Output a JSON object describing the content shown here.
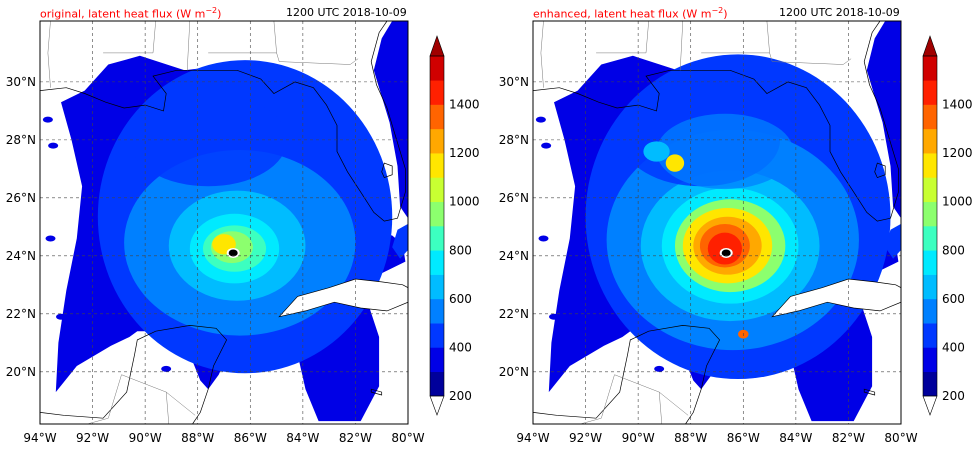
{
  "figure": {
    "time_label": "1200 UTC 2018-10-09",
    "unit_superscript": "−2"
  },
  "panels": [
    {
      "id": "original",
      "title": "original, latent heat flux (W m",
      "time": "1200 UTC 2018-10-09"
    },
    {
      "id": "enhanced",
      "title": "enhanced, latent heat flux (W m",
      "time": "1200 UTC 2018-10-09"
    }
  ],
  "map": {
    "lon_labels": [
      "94°W",
      "92°W",
      "90°W",
      "88°W",
      "86°W",
      "84°W",
      "82°W",
      "80°W"
    ],
    "lat_labels": [
      "30°N",
      "28°N",
      "26°N",
      "24°N",
      "22°N",
      "20°N"
    ],
    "lon_range": [
      -94,
      -80
    ],
    "lat_range": [
      18.2,
      32.1
    ],
    "gridlines": "dashed"
  },
  "colorbar": {
    "tick_labels": [
      "200",
      "400",
      "600",
      "800",
      "1000",
      "1200",
      "1400"
    ],
    "levels": [
      200,
      300,
      400,
      500,
      600,
      700,
      800,
      900,
      1000,
      1100,
      1200,
      1300,
      1400
    ],
    "colors": [
      "#00009b",
      "#0000e6",
      "#0038ff",
      "#0080ff",
      "#00bcff",
      "#00eaff",
      "#3cffc0",
      "#8cff6e",
      "#c8ff32",
      "#ffe600",
      "#ffa800",
      "#ff6400",
      "#ff2000",
      "#d00000"
    ],
    "extend_top_color": "#a00000",
    "extend_bottom_color": "#ffffff"
  }
}
